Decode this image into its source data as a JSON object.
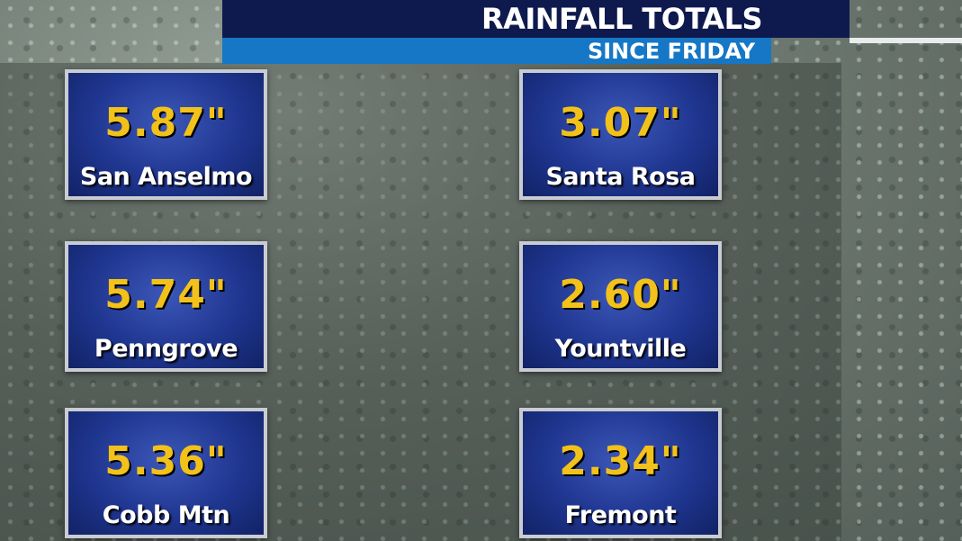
{
  "header": {
    "title": "RAINFALL TOTALS",
    "subtitle": "SINCE FRIDAY"
  },
  "cards": [
    {
      "value": "5.87\"",
      "location": "San Anselmo"
    },
    {
      "value": "3.07\"",
      "location": "Santa Rosa"
    },
    {
      "value": "5.74\"",
      "location": "Penngrove"
    },
    {
      "value": "2.60\"",
      "location": "Yountville"
    },
    {
      "value": "5.36\"",
      "location": "Cobb Mtn"
    },
    {
      "value": "2.34\"",
      "location": "Fremont"
    }
  ]
}
